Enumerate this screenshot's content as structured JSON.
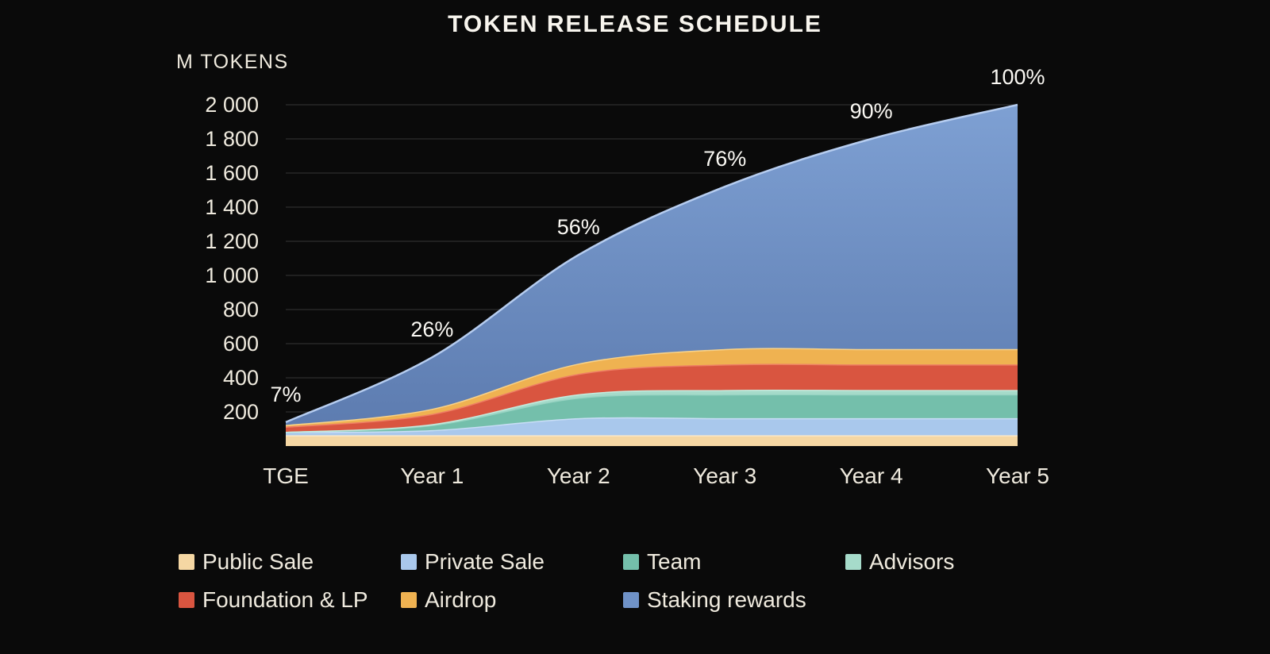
{
  "title": "TOKEN RELEASE SCHEDULE",
  "colors": {
    "background": "#0a0a0a",
    "title": "#f8f5ee",
    "text": "#efeade",
    "annotation": "#fbf9f4",
    "grid": "#2e2e2e"
  },
  "chart_data": {
    "type": "area",
    "stacked": true,
    "title": "TOKEN RELEASE SCHEDULE",
    "ylabel": "M TOKENS",
    "xlabel": "",
    "categories": [
      "TGE",
      "Year 1",
      "Year 2",
      "Year 3",
      "Year 4",
      "Year 5"
    ],
    "ylim": [
      0,
      2000
    ],
    "grid": true,
    "legend_position": "bottom",
    "y_ticks": [
      200,
      400,
      600,
      800,
      1000,
      1200,
      1400,
      1600,
      1800,
      2000
    ],
    "y_tick_labels": [
      "200",
      "400",
      "600",
      "800",
      "1 000",
      "1 200",
      "1 400",
      "1 600",
      "1 800",
      "2 000"
    ],
    "cumulative_percent_labels": [
      "7%",
      "26%",
      "56%",
      "76%",
      "90%",
      "100%"
    ],
    "totals_m_tokens": [
      140,
      520,
      1120,
      1520,
      1800,
      2000
    ],
    "series": [
      {
        "name": "Public Sale",
        "color": "#f5d7a3",
        "edge": "#fae8c8",
        "values": [
          60,
          60,
          60,
          60,
          60,
          60
        ]
      },
      {
        "name": "Private Sale",
        "color": "#a9c8ec",
        "edge": "#c9def6",
        "values": [
          20,
          30,
          100,
          100,
          100,
          100
        ]
      },
      {
        "name": "Team",
        "color": "#74bfab",
        "edge": "#98d4c3",
        "values": [
          0,
          30,
          120,
          140,
          140,
          140
        ]
      },
      {
        "name": "Advisors",
        "color": "#a6dbca",
        "edge": "#c4ecdf",
        "values": [
          0,
          5,
          20,
          25,
          25,
          25
        ]
      },
      {
        "name": "Foundation & LP",
        "color": "#d95540",
        "edge": "#ee7f64",
        "values": [
          30,
          60,
          120,
          150,
          150,
          150
        ]
      },
      {
        "name": "Airdrop",
        "color": "#efb251",
        "edge": "#f8d289",
        "values": [
          10,
          30,
          60,
          90,
          90,
          90
        ]
      },
      {
        "name": "Staking rewards",
        "color": "#6f92c7",
        "edge": "#b6cdf0",
        "gradient": [
          "#7ea0d3",
          "#5d7cb0"
        ],
        "values": [
          20,
          305,
          640,
          955,
          1235,
          1435
        ]
      }
    ]
  }
}
